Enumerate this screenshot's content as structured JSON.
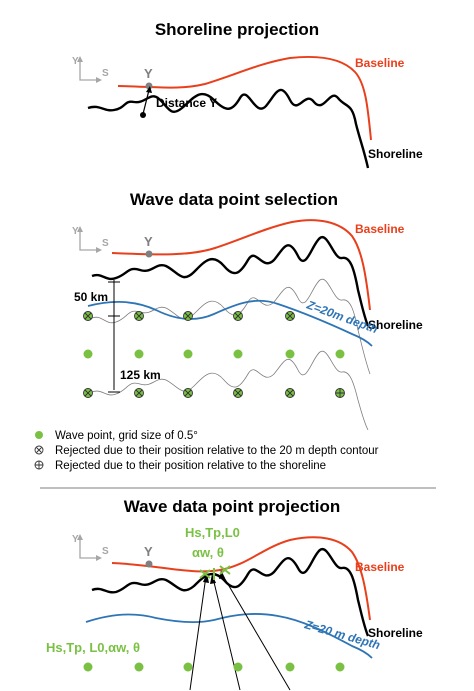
{
  "panels": {
    "projection": {
      "title": "Shoreline projection",
      "baseline": "Baseline",
      "shoreline": "Shoreline",
      "distance": "Distance Y",
      "axis_y": "Y",
      "axis_s": "S",
      "point_y": "Y"
    },
    "selection": {
      "title": "Wave data point selection",
      "baseline": "Baseline",
      "shoreline": "Shoreline",
      "contour": "Z=20m depth",
      "dist_50": "50 km",
      "dist_125": "125 km",
      "axis_y": "Y",
      "axis_s": "S",
      "point_y": "Y"
    },
    "wave_projection": {
      "title": "Wave data point projection",
      "baseline": "Baseline",
      "shoreline": "Shoreline",
      "contour": "Z=20 m depth",
      "params_top_1": "Hs,Tp,L0",
      "params_top_2": "αw, θ",
      "params_left": "Hs,Tp, L0,αw, θ",
      "axis_y": "Y",
      "axis_s": "S",
      "point_y": "Y"
    }
  },
  "legend": [
    {
      "symbol": "filled-dot",
      "text": "Wave point, grid size of 0.5°"
    },
    {
      "symbol": "circled-x",
      "text": "Rejected due to their position relative to the 20 m depth contour"
    },
    {
      "symbol": "circled-plus",
      "text": "Rejected due to their position relative to the shoreline"
    }
  ],
  "colors": {
    "baseline": "#e8401c",
    "contour": "#2e75b6",
    "wave_point": "#7ac143",
    "axis": "#a6a6a6"
  }
}
